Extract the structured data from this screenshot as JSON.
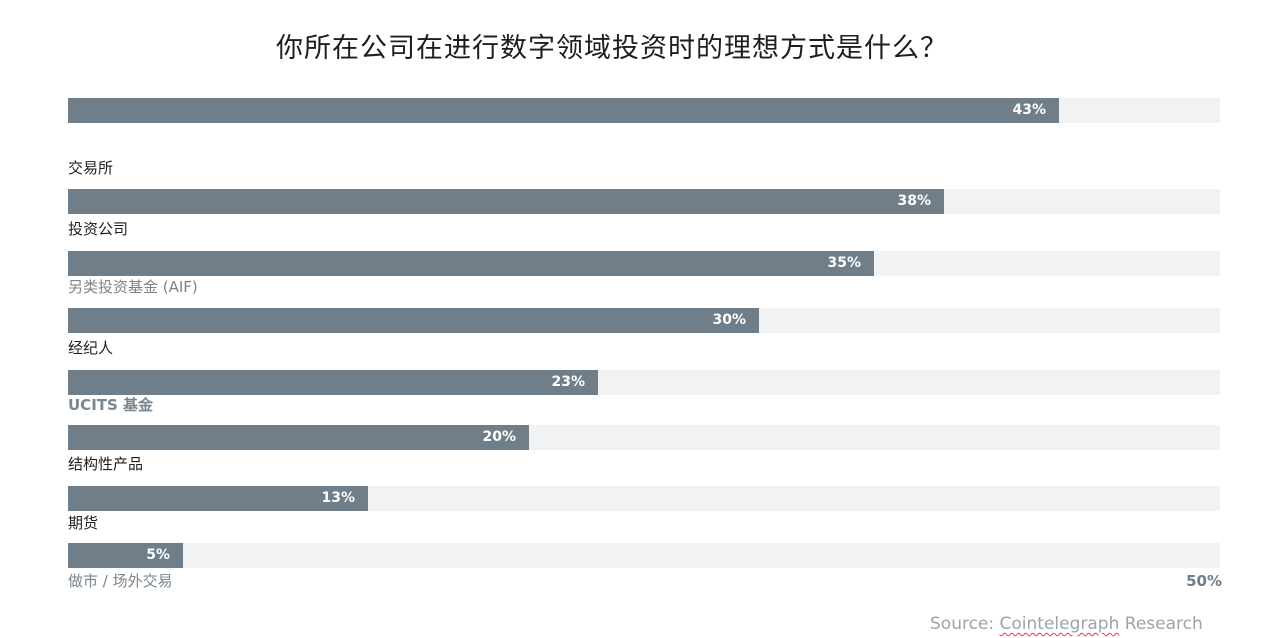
{
  "chart_data": {
    "type": "bar",
    "orientation": "horizontal",
    "title": "你所在公司在进行数字领域投资时的理想方式是什么？",
    "categories": [
      "交易所",
      "投资公司",
      "另类投资基金 (AIF)",
      "经纪人",
      "UCITS 基金",
      "结构性产品",
      "期货",
      "做市 / 场外交易"
    ],
    "values": [
      43,
      38,
      35,
      30,
      23,
      20,
      13,
      5
    ],
    "value_labels": [
      "43%",
      "38%",
      "35%",
      "30%",
      "23%",
      "20%",
      "13%",
      "5%"
    ],
    "xlim": [
      0,
      50
    ],
    "axis_max_label": "50%",
    "unit": "%",
    "grid": false,
    "legend": "none",
    "source_prefix": "Source: ",
    "source_brand": "Cointelegraph",
    "source_suffix": " Research",
    "colors": {
      "bar": "#6f7e88",
      "track": "#f1f2f4",
      "label_dark": "#1e1e1e",
      "label_muted": "#7b858d"
    }
  }
}
